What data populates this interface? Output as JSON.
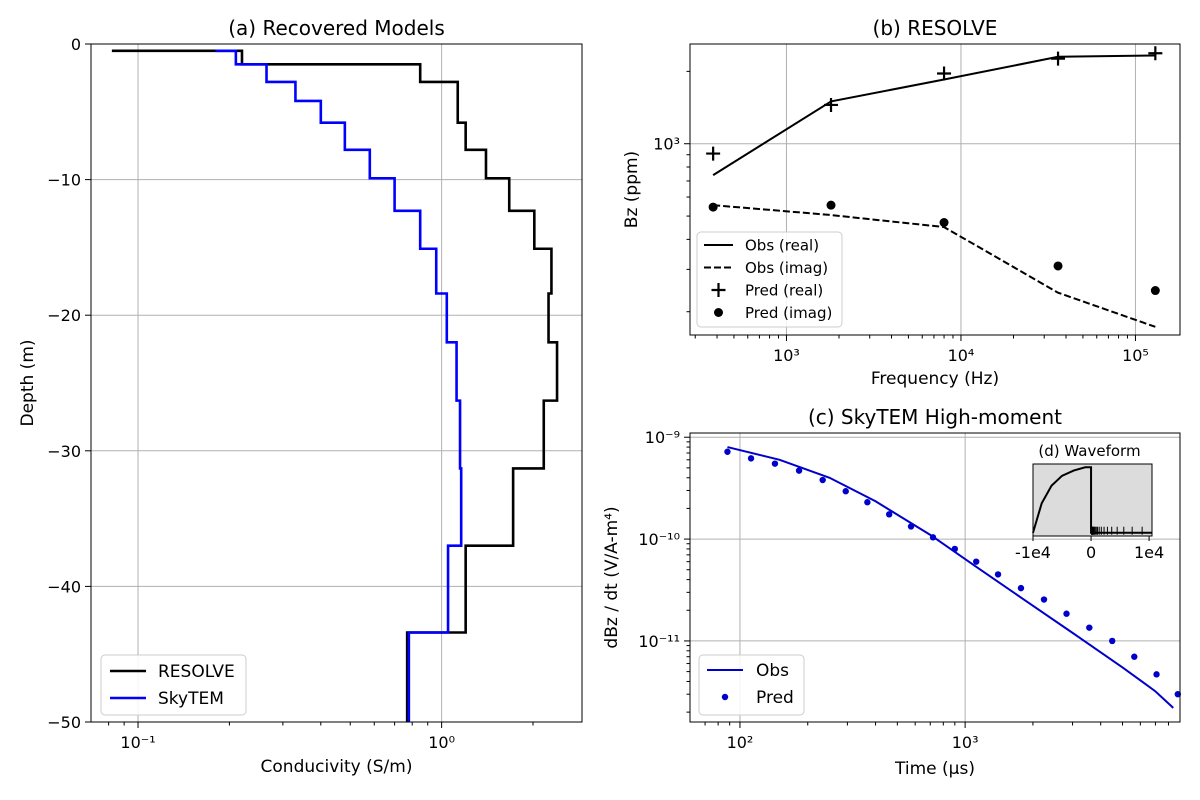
{
  "chart_data": [
    {
      "id": "a",
      "type": "line",
      "title": "(a) Recovered Models",
      "xlabel": "Conducivity (S/m)",
      "ylabel": "Depth (m)",
      "xscale": "log",
      "xlim": [
        0.07,
        2.9
      ],
      "ylim": [
        -50,
        0
      ],
      "xticks": [
        0.1,
        1
      ],
      "xtick_labels": [
        "10⁻¹",
        "10⁰"
      ],
      "yticks": [
        0,
        -10,
        -20,
        -30,
        -40,
        -50
      ],
      "ytick_labels": [
        "0",
        "−10",
        "−20",
        "−30",
        "−40",
        "−50"
      ],
      "grid": true,
      "legend": "lower-left",
      "series": [
        {
          "name": "RESOLVE",
          "color": "#000000",
          "depth": [
            -0.5,
            -1.5,
            -2.8,
            -5.8,
            -7.8,
            -9.9,
            -12.3,
            -15.1,
            -18.4,
            -22.0,
            -26.3,
            -31.3,
            -37.0,
            -43.4,
            -50
          ],
          "values": [
            0.082,
            0.22,
            0.85,
            1.13,
            1.2,
            1.4,
            1.67,
            2.02,
            2.3,
            2.25,
            2.4,
            2.17,
            1.72,
            1.2,
            0.77
          ]
        },
        {
          "name": "SkyTEM",
          "color": "#0000ff",
          "depth": [
            -0.5,
            -1.5,
            -2.8,
            -4.2,
            -5.8,
            -7.8,
            -9.9,
            -12.3,
            -15.1,
            -18.4,
            -22.0,
            -26.3,
            -31.3,
            -37.0,
            -43.4,
            -50
          ],
          "values": [
            0.18,
            0.21,
            0.265,
            0.33,
            0.4,
            0.48,
            0.58,
            0.7,
            0.85,
            0.96,
            1.04,
            1.12,
            1.15,
            1.16,
            1.05,
            0.78
          ]
        }
      ]
    },
    {
      "id": "b",
      "type": "line",
      "title": "(b) RESOLVE",
      "xlabel": "Frequency (Hz)",
      "ylabel": "Bz (ppm)",
      "xscale": "log",
      "yscale": "log",
      "xlim": [
        280,
        180000
      ],
      "ylim": [
        160,
        2600
      ],
      "xticks": [
        1000,
        10000,
        100000
      ],
      "xtick_labels": [
        "10³",
        "10⁴",
        "10⁵"
      ],
      "yticks": [
        1000
      ],
      "ytick_labels": [
        "10³"
      ],
      "grid": true,
      "legend": "lower-left",
      "x": [
        380,
        1800,
        8000,
        36000,
        130000
      ],
      "series": [
        {
          "name": "Obs (real)",
          "style": "solid",
          "values": [
            740,
            1500,
            1850,
            2300,
            2330
          ]
        },
        {
          "name": "Obs (imag)",
          "style": "dashed",
          "values": [
            555,
            505,
            450,
            240,
            173
          ]
        },
        {
          "name": "Pred (real)",
          "style": "plus",
          "values": [
            910,
            1450,
            1960,
            2260,
            2380
          ]
        },
        {
          "name": "Pred (imag)",
          "style": "dot",
          "values": [
            545,
            555,
            470,
            310,
            245
          ]
        }
      ]
    },
    {
      "id": "c",
      "type": "line",
      "title": "(c) SkyTEM High-moment",
      "xlabel": "Time (μs)",
      "ylabel": "dBz / dt (V/A-m⁴)",
      "xscale": "log",
      "yscale": "log",
      "xlim": [
        60,
        9000
      ],
      "ylim": [
        1.6e-12,
        1.1e-09
      ],
      "xticks": [
        100,
        1000
      ],
      "xtick_labels": [
        "10²",
        "10³"
      ],
      "yticks": [
        1e-09,
        1e-10,
        1e-11
      ],
      "ytick_labels": [
        "10⁻⁹",
        "10⁻¹⁰",
        "10⁻¹¹"
      ],
      "grid": true,
      "legend": "lower-left",
      "series": [
        {
          "name": "Obs",
          "style": "line",
          "color": "#0000cc",
          "x": [
            88,
            150,
            250,
            400,
            700,
            1100,
            1800,
            3000,
            5000,
            7000,
            8400
          ],
          "values": [
            8e-10,
            6e-10,
            4e-10,
            2.35e-10,
            1.1e-10,
            5.5e-11,
            2.6e-11,
            1.2e-11,
            5.5e-12,
            3.2e-12,
            2.2e-12
          ]
        },
        {
          "name": "Pred",
          "style": "dot",
          "color": "#0000cc",
          "x": [
            88,
            112,
            143,
            183,
            233,
            295,
            368,
            460,
            575,
            720,
            900,
            1120,
            1400,
            1770,
            2240,
            2820,
            3560,
            4500,
            5640,
            7080,
            8800
          ],
          "values": [
            7.2e-10,
            6.2e-10,
            5.5e-10,
            4.7e-10,
            3.8e-10,
            2.95e-10,
            2.3e-10,
            1.75e-10,
            1.33e-10,
            1.04e-10,
            8e-11,
            6e-11,
            4.5e-11,
            3.3e-11,
            2.55e-11,
            1.85e-11,
            1.35e-11,
            1e-11,
            7e-12,
            4.7e-12,
            3e-12
          ]
        }
      ]
    },
    {
      "id": "d",
      "type": "line",
      "title": "(d) Waveform",
      "xticks": [
        -10000,
        0,
        10000
      ],
      "xtick_labels": [
        "-1e4",
        "0",
        "1e4"
      ],
      "xlim": [
        -10000,
        10500
      ],
      "ylim": [
        -0.05,
        1.05
      ],
      "background": "#dcdcdc",
      "waveform": {
        "t": [
          -10000,
          -8500,
          -6800,
          -5000,
          -3000,
          -1000,
          -200,
          0,
          0,
          10500
        ],
        "amp": [
          0.0,
          0.45,
          0.72,
          0.87,
          0.95,
          1.0,
          1.0,
          1.0,
          0.0,
          0.0
        ]
      },
      "gate_times": [
        88,
        112,
        143,
        183,
        233,
        295,
        368,
        460,
        575,
        720,
        900,
        1120,
        1400,
        1770,
        2240,
        2820,
        3560,
        4500,
        5640,
        7080,
        8800
      ]
    }
  ]
}
